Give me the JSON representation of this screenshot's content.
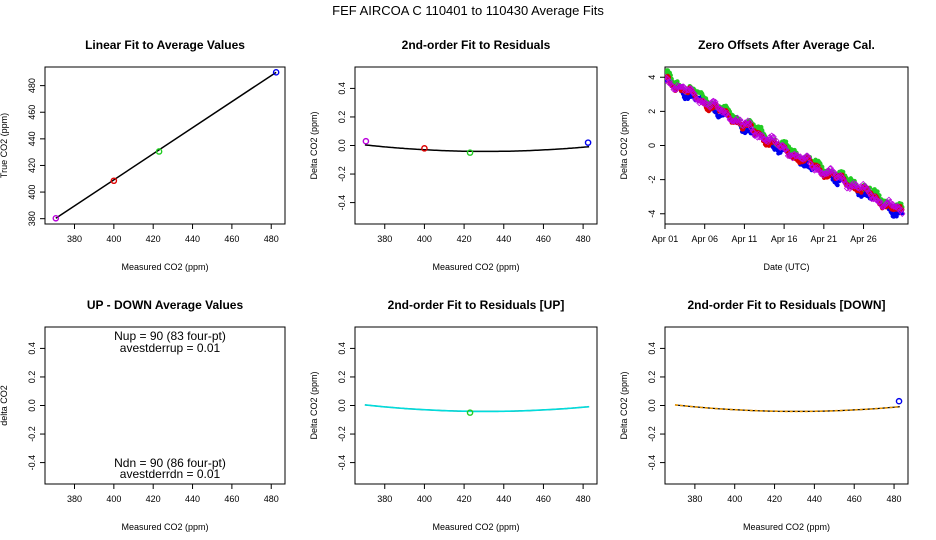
{
  "page_title": "FEF   AIRCOA C   110401 to 110430   Average Fits",
  "colors": {
    "black": "#000000",
    "red": "#dd0000",
    "green": "#22cc22",
    "blue": "#0000ee",
    "purple": "#bb00dd",
    "cyan": "#00dddd",
    "orange": "#ee9900"
  },
  "chart_data": [
    {
      "type": "line",
      "title": "Linear Fit to Average Values",
      "xlabel": "Measured CO2 (ppm)",
      "ylabel": "True CO2 (ppm)",
      "xlim": [
        365,
        487
      ],
      "ylim": [
        376,
        494
      ],
      "xticks": [
        380,
        400,
        420,
        440,
        460,
        480
      ],
      "yticks": [
        380,
        400,
        420,
        440,
        460,
        480
      ],
      "points": [
        {
          "x": 370.5,
          "y": 380.3,
          "color": "purple"
        },
        {
          "x": 400.0,
          "y": 408.5,
          "color": "red"
        },
        {
          "x": 423.0,
          "y": 430.5,
          "color": "green"
        },
        {
          "x": 482.5,
          "y": 490.0,
          "color": "blue"
        }
      ],
      "fit_line": [
        [
          370.5,
          380.3
        ],
        [
          482.5,
          490.0
        ]
      ]
    },
    {
      "type": "line",
      "title": "2nd-order Fit to Residuals",
      "xlabel": "Measured CO2 (ppm)",
      "ylabel": "Delta CO2 (ppm)",
      "xlim": [
        365,
        487
      ],
      "ylim": [
        -0.55,
        0.55
      ],
      "xticks": [
        380,
        400,
        420,
        440,
        460,
        480
      ],
      "yticks": [
        -0.4,
        -0.2,
        0.0,
        0.2,
        0.4
      ],
      "points": [
        {
          "x": 370.5,
          "y": 0.03,
          "color": "purple"
        },
        {
          "x": 400.0,
          "y": -0.02,
          "color": "red"
        },
        {
          "x": 423.0,
          "y": -0.05,
          "color": "green"
        },
        {
          "x": 482.5,
          "y": 0.02,
          "color": "blue"
        }
      ],
      "curve": {
        "a": 1.23e-05,
        "h": 431.0,
        "k": -0.0415,
        "color": "black"
      }
    },
    {
      "type": "scatter",
      "title": "Zero Offsets After Average Cal.",
      "xlabel": "Date (UTC)",
      "ylabel": "Delta CO2 (ppm)",
      "xlim": [
        0,
        30.6
      ],
      "ylim": [
        -4.6,
        4.6
      ],
      "xticks": [
        0,
        5,
        10,
        15,
        20,
        25
      ],
      "xticklabels": [
        "Apr 01",
        "Apr 06",
        "Apr 11",
        "Apr 16",
        "Apr 21",
        "Apr 26"
      ],
      "yticks": [
        -4,
        -2,
        0,
        2,
        4
      ],
      "trend": [
        [
          0,
          3.9
        ],
        [
          5,
          2.6
        ],
        [
          10,
          1.2
        ],
        [
          15,
          -0.2
        ],
        [
          20,
          -1.5
        ],
        [
          25,
          -2.6
        ],
        [
          30,
          -4.0
        ]
      ],
      "series": [
        {
          "color": "blue",
          "offset": -0.12
        },
        {
          "color": "green",
          "offset": 0.18
        },
        {
          "color": "red",
          "offset": -0.05
        },
        {
          "color": "purple",
          "offset": 0.0
        }
      ]
    },
    {
      "type": "text",
      "title": "UP - DOWN Average Values",
      "xlabel": "Measured CO2 (ppm)",
      "ylabel": "delta CO2",
      "xlim": [
        365,
        487
      ],
      "ylim": [
        -0.55,
        0.55
      ],
      "xticks": [
        380,
        400,
        420,
        440,
        460,
        480
      ],
      "yticks": [
        -0.4,
        -0.2,
        0.0,
        0.2,
        0.4
      ],
      "annotations": {
        "nup": "Nup = 90 (83 four-pt)",
        "avestderrup": "avestderrup =  0.01",
        "ndn": "Ndn = 90 (86 four-pt)",
        "avestderrdn": "avestderrdn =  0.01"
      }
    },
    {
      "type": "line",
      "title": "2nd-order Fit to Residuals [UP]",
      "xlabel": "Measured CO2 (ppm)",
      "ylabel": "Delta CO2 (ppm)",
      "xlim": [
        365,
        487
      ],
      "ylim": [
        -0.55,
        0.55
      ],
      "xticks": [
        380,
        400,
        420,
        440,
        460,
        480
      ],
      "yticks": [
        -0.4,
        -0.2,
        0.0,
        0.2,
        0.4
      ],
      "points": [
        {
          "x": 423.0,
          "y": -0.05,
          "color": "green"
        }
      ],
      "curve": {
        "a": 1.23e-05,
        "h": 431.0,
        "k": -0.0415,
        "color": "cyan"
      }
    },
    {
      "type": "line",
      "title": "2nd-order Fit to Residuals [DOWN]",
      "xlabel": "Measured CO2 (ppm)",
      "ylabel": "Delta CO2 (ppm)",
      "xlim": [
        365,
        487
      ],
      "ylim": [
        -0.55,
        0.55
      ],
      "xticks": [
        380,
        400,
        420,
        440,
        460,
        480
      ],
      "yticks": [
        -0.4,
        -0.2,
        0.0,
        0.2,
        0.4
      ],
      "points": [
        {
          "x": 482.5,
          "y": 0.03,
          "color": "blue"
        }
      ],
      "curve": {
        "a": 1.23e-05,
        "h": 431.0,
        "k": -0.0415,
        "color": "orange"
      }
    }
  ]
}
